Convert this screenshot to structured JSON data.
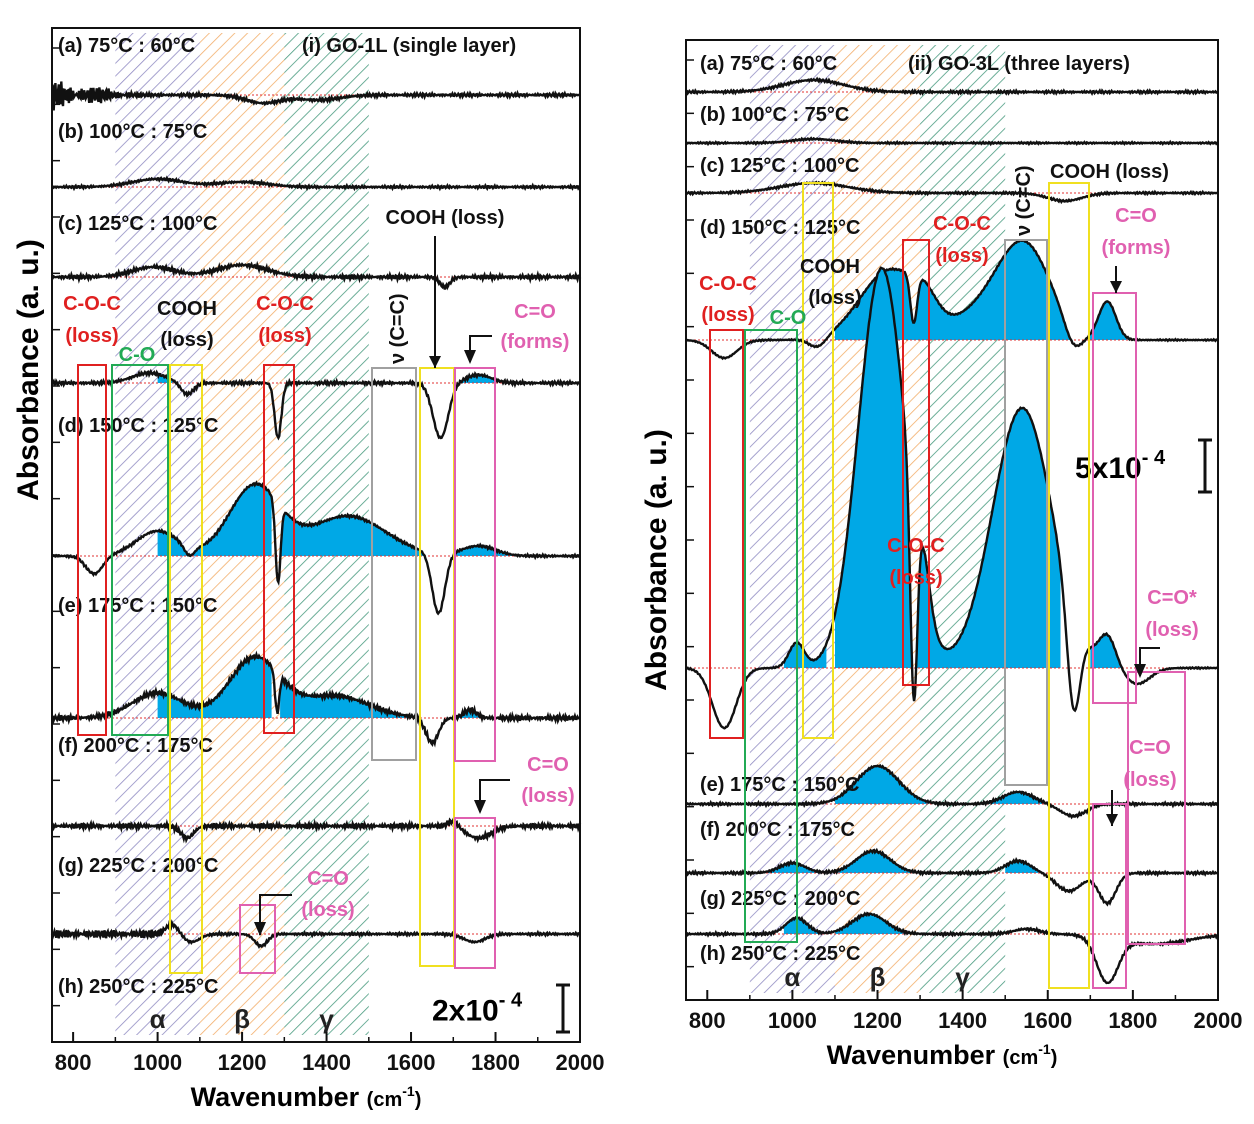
{
  "ylabel": "Absorbance (a. u.)",
  "xlabel_main": "Wavenumber",
  "xlabel_unit": "(cm",
  "xlabel_exp": "-1",
  "xlabel_close": ")",
  "colors": {
    "fill": "#00a8e6",
    "trace": "#111111",
    "baseline": "#e03030",
    "alpha_hatch": "#7d78b8",
    "beta_hatch": "#f0a050",
    "gamma_hatch": "#2a8a6a",
    "coc_box": "#e02020",
    "co_box": "#22aa55",
    "cooh_box": "#f0e020",
    "cc_box": "#a0a0a0",
    "ceo_box": "#e060b0"
  },
  "chart_data": [
    {
      "type": "line",
      "title": "(i) GO-1L (single layer)",
      "xlim": [
        750,
        2000
      ],
      "xticks": [
        800,
        1000,
        1200,
        1400,
        1600,
        1800,
        2000
      ],
      "regions": [
        {
          "label": "α",
          "from": 900,
          "to": 1100
        },
        {
          "label": "β",
          "from": 1100,
          "to": 1300
        },
        {
          "label": "γ",
          "from": 1300,
          "to": 1500
        }
      ],
      "series": [
        {
          "name": "(a) 75°C : 60°C"
        },
        {
          "name": "(b) 100°C : 75°C"
        },
        {
          "name": "(c) 125°C : 100°C"
        },
        {
          "name": "(d) 150°C : 125°C"
        },
        {
          "name": "(e) 175°C : 150°C"
        },
        {
          "name": "(f) 200°C : 175°C"
        },
        {
          "name": "(g) 225°C : 200°C"
        },
        {
          "name": "(h) 250°C : 225°C"
        }
      ],
      "annotations": {
        "coc1": "C-O-C",
        "coc1b": "(loss)",
        "cooh1": "COOH",
        "cooh1b": "(loss)",
        "coc2": "C-O-C",
        "coc2b": "(loss)",
        "co": "C-O",
        "cc": "ν (C=C)",
        "cooh_top": "COOH (loss)",
        "ceo_forms": "C=O",
        "ceo_formsb": "(forms)",
        "ceo_loss": "C=O",
        "ceo_lossb": "(loss)",
        "ceo_loss2": "C=O",
        "ceo_loss2b": "(loss)"
      },
      "scale_bar": "2x10",
      "scale_exp": "- 4"
    },
    {
      "type": "line",
      "title": "(ii) GO-3L (three layers)",
      "xlim": [
        750,
        2000
      ],
      "xticks": [
        800,
        1000,
        1200,
        1400,
        1600,
        1800,
        2000
      ],
      "regions": [
        {
          "label": "α",
          "from": 900,
          "to": 1100
        },
        {
          "label": "β",
          "from": 1100,
          "to": 1300
        },
        {
          "label": "γ",
          "from": 1300,
          "to": 1500
        }
      ],
      "series": [
        {
          "name": "(a) 75°C : 60°C"
        },
        {
          "name": "(b) 100°C : 75°C"
        },
        {
          "name": "(c) 125°C : 100°C"
        },
        {
          "name": "(d) 150°C : 125°C"
        },
        {
          "name": "(e) 175°C : 150°C"
        },
        {
          "name": "(f) 200°C : 175°C"
        },
        {
          "name": "(g) 225°C : 200°C"
        },
        {
          "name": "(h) 250°C : 225°C"
        }
      ],
      "annotations": {
        "coc1": "C-O-C",
        "coc1b": "(loss)",
        "co": "C-O",
        "cooh1": "COOH",
        "cooh1b": "(loss)",
        "coc2": "C-O-C",
        "coc2b": "(loss)",
        "cc": "ν (C=C)",
        "cooh_top": "COOH (loss)",
        "ceo_forms": "C=O",
        "ceo_formsb": "(forms)",
        "coc_mid": "C-O-C",
        "coc_midb": "(loss)",
        "ceo_star": "C=O*",
        "ceo_starb": "(loss)",
        "ceo_loss": "C=O",
        "ceo_lossb": "(loss)"
      },
      "scale_bar": "5x10",
      "scale_exp": "- 4"
    }
  ]
}
